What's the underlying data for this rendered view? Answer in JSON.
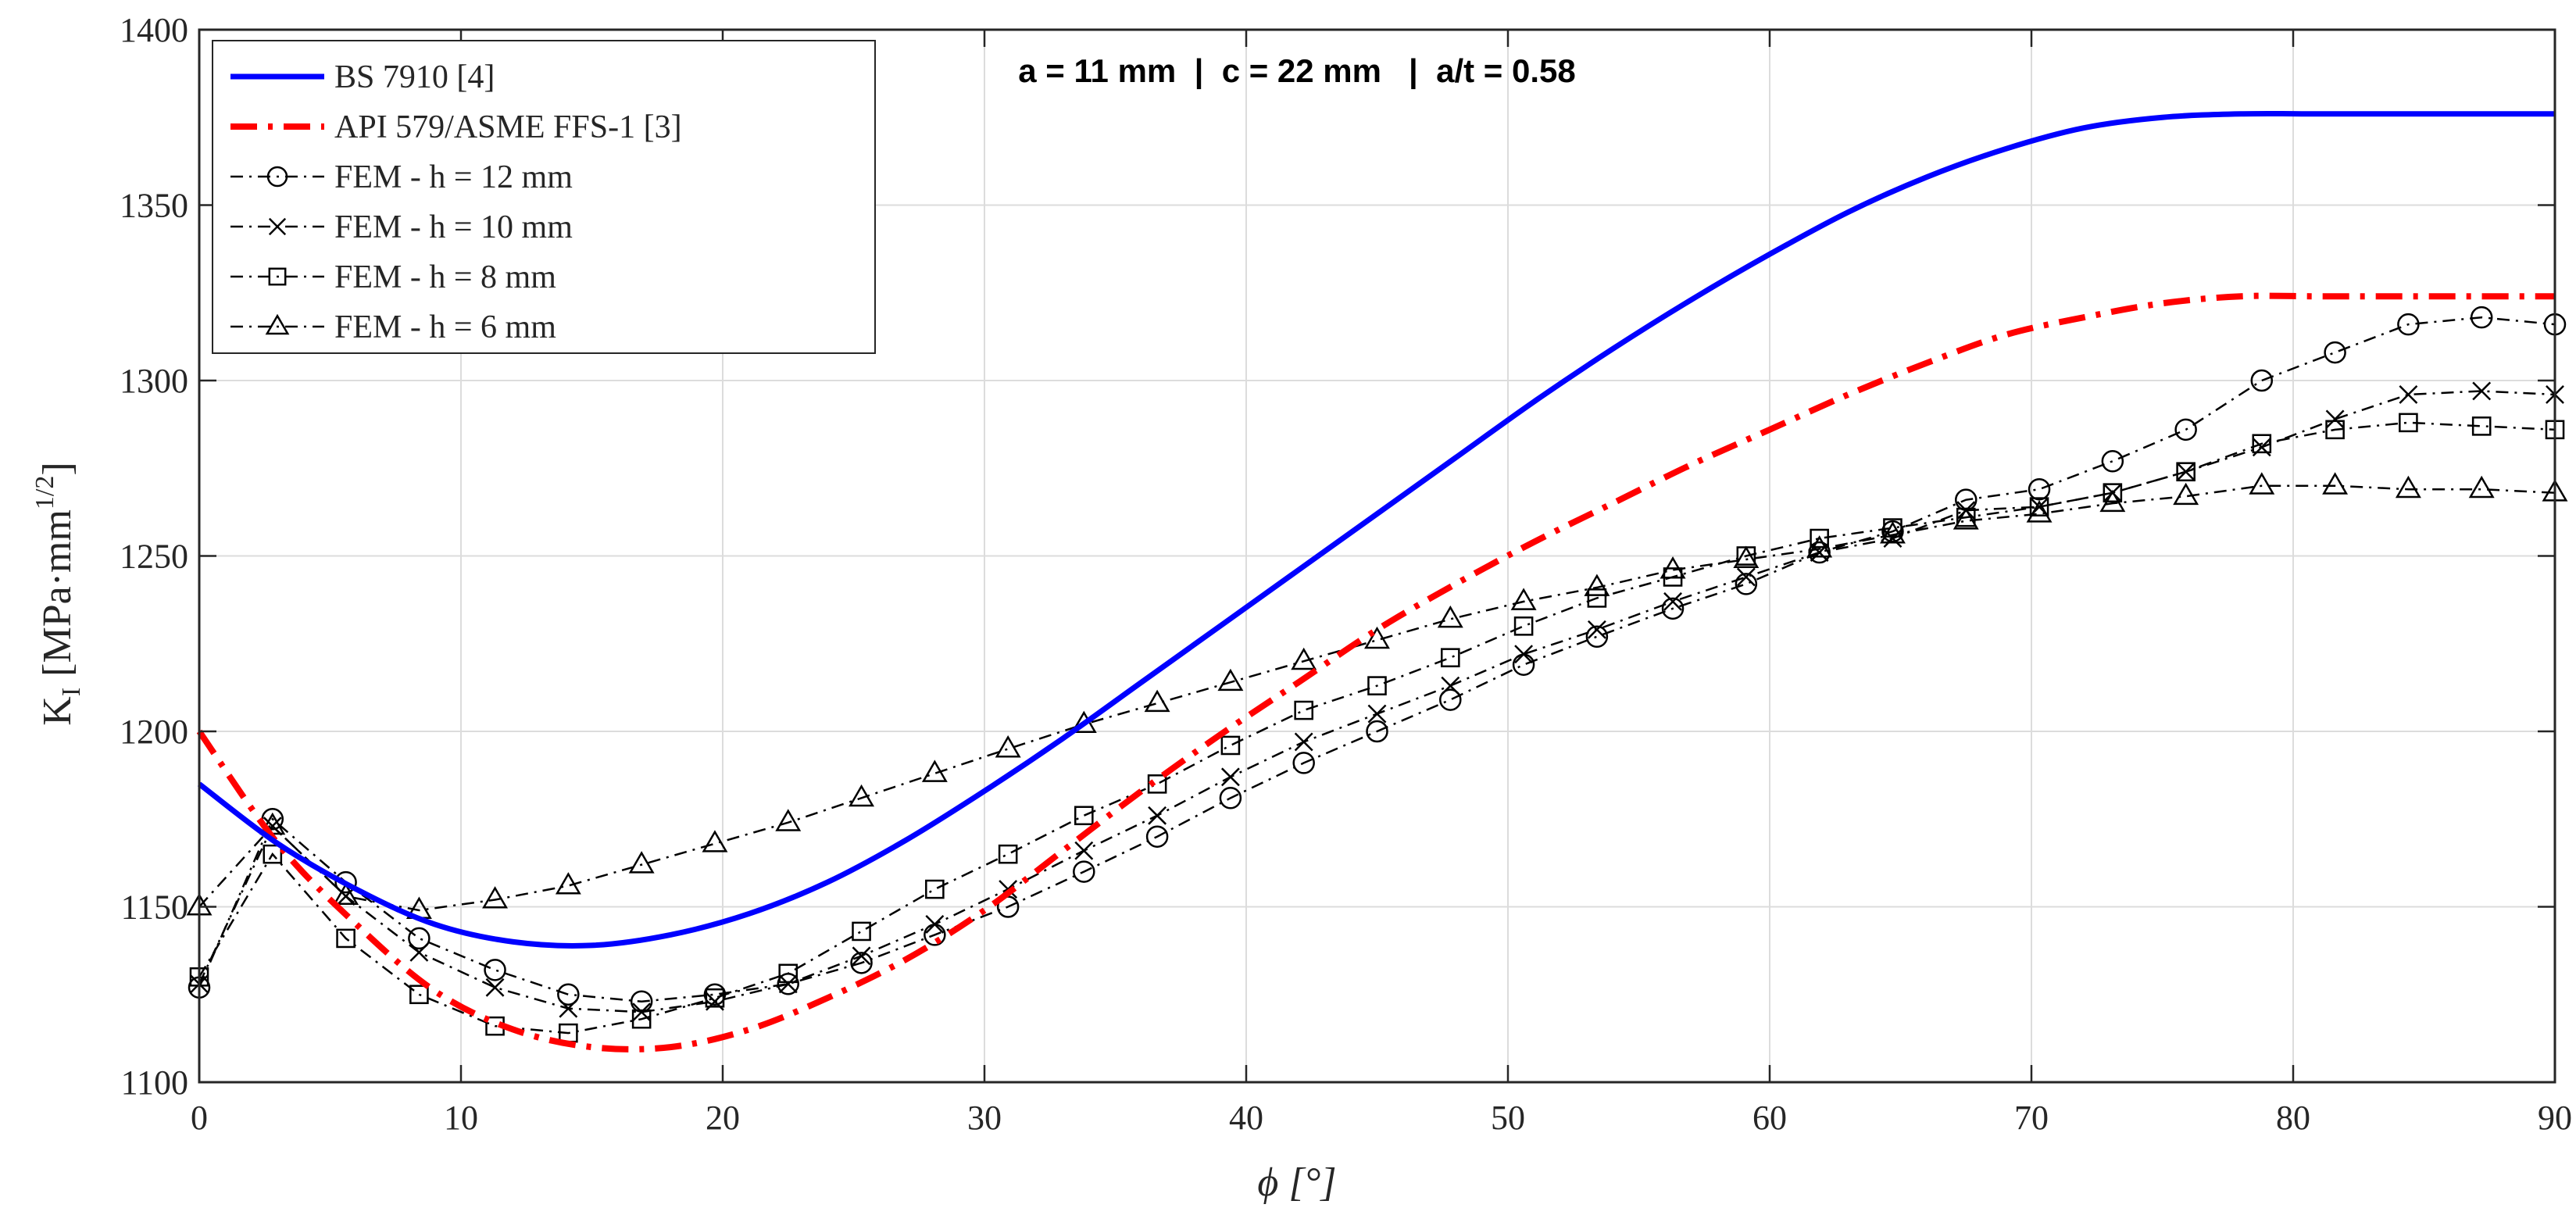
{
  "chart_data": {
    "type": "line",
    "title": "",
    "annotation": "a = 11 mm  |  c = 22 mm   |  a/t = 0.58",
    "xlabel": "ϕ [°]",
    "ylabel_main": "K",
    "ylabel_sub": "I",
    "ylabel_unit": "[MPa·mm",
    "ylabel_sup": "1/2",
    "ylabel_close": "]",
    "xlim": [
      0,
      90
    ],
    "ylim": [
      1100,
      1400
    ],
    "xticks": [
      0,
      10,
      20,
      30,
      40,
      50,
      60,
      70,
      80,
      90
    ],
    "yticks": [
      1100,
      1150,
      1200,
      1250,
      1300,
      1350,
      1400
    ],
    "grid": true,
    "legend_position": "top-left",
    "series": [
      {
        "name": "BS 7910 [4]",
        "style": "solid",
        "marker": "none",
        "color": "#0000ff",
        "x": [
          0,
          3,
          6,
          9,
          12,
          15,
          18,
          21,
          24,
          27,
          30,
          33,
          36,
          39,
          42,
          45,
          48,
          51,
          54,
          57,
          60,
          63,
          66,
          69,
          72,
          75,
          78,
          81,
          84,
          87,
          90
        ],
        "y": [
          1185,
          1168,
          1155,
          1145,
          1140,
          1139,
          1142,
          1148,
          1157,
          1169,
          1183,
          1198,
          1214,
          1230,
          1246,
          1262,
          1278,
          1294,
          1309,
          1323,
          1336,
          1348,
          1358,
          1366,
          1372,
          1375,
          1376,
          1376,
          1376,
          1376,
          1376
        ]
      },
      {
        "name": "API 579/ASME FFS-1 [3]",
        "style": "dashdot",
        "marker": "none",
        "color": "#ff0000",
        "x": [
          0,
          3,
          6,
          9,
          12,
          15,
          18,
          21,
          24,
          27,
          30,
          33,
          36,
          39,
          42,
          45,
          48,
          51,
          54,
          57,
          60,
          63,
          66,
          69,
          72,
          75,
          78,
          81,
          84,
          87,
          90
        ],
        "y": [
          1200,
          1168,
          1145,
          1126,
          1115,
          1110,
          1110,
          1115,
          1124,
          1135,
          1149,
          1166,
          1183,
          1199,
          1214,
          1229,
          1242,
          1254,
          1265,
          1276,
          1286,
          1296,
          1305,
          1313,
          1318,
          1322,
          1324,
          1324,
          1324,
          1324,
          1324
        ]
      },
      {
        "name": "FEM - h = 12 mm",
        "style": "dashdot",
        "marker": "circle",
        "color": "#000000",
        "x": [
          0,
          2.8,
          5.6,
          8.4,
          11.3,
          14.1,
          16.9,
          19.7,
          22.5,
          25.3,
          28.1,
          30.9,
          33.8,
          36.6,
          39.4,
          42.2,
          45,
          47.8,
          50.6,
          53.4,
          56.3,
          59.1,
          61.9,
          64.7,
          67.5,
          70.3,
          73.1,
          75.9,
          78.8,
          81.6,
          84.4,
          87.2,
          90
        ],
        "y": [
          1127,
          1175,
          1157,
          1141,
          1132,
          1125,
          1123,
          1125,
          1128,
          1134,
          1142,
          1150,
          1160,
          1170,
          1181,
          1191,
          1200,
          1209,
          1219,
          1227,
          1235,
          1242,
          1251,
          1257,
          1266,
          1269,
          1277,
          1286,
          1300,
          1308,
          1316,
          1318,
          1316
        ]
      },
      {
        "name": "FEM - h = 10 mm",
        "style": "dashdot",
        "marker": "x",
        "color": "#000000",
        "x": [
          0,
          2.8,
          5.6,
          8.4,
          11.3,
          14.1,
          16.9,
          19.7,
          22.5,
          25.3,
          28.1,
          30.9,
          33.8,
          36.6,
          39.4,
          42.2,
          45,
          47.8,
          50.6,
          53.4,
          56.3,
          59.1,
          61.9,
          64.7,
          67.5,
          70.3,
          73.1,
          75.9,
          78.8,
          81.6,
          84.4,
          87.2,
          90
        ],
        "y": [
          1128,
          1173,
          1153,
          1137,
          1127,
          1121,
          1120,
          1123,
          1128,
          1136,
          1145,
          1155,
          1166,
          1176,
          1187,
          1197,
          1205,
          1213,
          1222,
          1229,
          1237,
          1244,
          1251,
          1255,
          1263,
          1264,
          1268,
          1274,
          1281,
          1289,
          1296,
          1297,
          1296
        ]
      },
      {
        "name": "FEM - h = 8 mm",
        "style": "dashdot",
        "marker": "square",
        "color": "#000000",
        "x": [
          0,
          2.8,
          5.6,
          8.4,
          11.3,
          14.1,
          16.9,
          19.7,
          22.5,
          25.3,
          28.1,
          30.9,
          33.8,
          36.6,
          39.4,
          42.2,
          45,
          47.8,
          50.6,
          53.4,
          56.3,
          59.1,
          61.9,
          64.7,
          67.5,
          70.3,
          73.1,
          75.9,
          78.8,
          81.6,
          84.4,
          87.2,
          90
        ],
        "y": [
          1130,
          1165,
          1141,
          1125,
          1116,
          1114,
          1118,
          1124,
          1131,
          1143,
          1155,
          1165,
          1176,
          1185,
          1196,
          1206,
          1213,
          1221,
          1230,
          1238,
          1244,
          1250,
          1255,
          1258,
          1261,
          1264,
          1268,
          1274,
          1282,
          1286,
          1288,
          1287,
          1286
        ]
      },
      {
        "name": "FEM - h = 6 mm",
        "style": "dashdot",
        "marker": "triangle",
        "color": "#000000",
        "x": [
          0,
          2.8,
          5.6,
          8.4,
          11.3,
          14.1,
          16.9,
          19.7,
          22.5,
          25.3,
          28.1,
          30.9,
          33.8,
          36.6,
          39.4,
          42.2,
          45,
          47.8,
          50.6,
          53.4,
          56.3,
          59.1,
          61.9,
          64.7,
          67.5,
          70.3,
          73.1,
          75.9,
          78.8,
          81.6,
          84.4,
          87.2,
          90
        ],
        "y": [
          1150,
          1173,
          1153,
          1149,
          1152,
          1156,
          1162,
          1168,
          1174,
          1181,
          1188,
          1195,
          1202,
          1208,
          1214,
          1220,
          1226,
          1232,
          1237,
          1241,
          1246,
          1249,
          1252,
          1256,
          1260,
          1262,
          1265,
          1267,
          1270,
          1270,
          1269,
          1269,
          1268
        ]
      }
    ]
  }
}
